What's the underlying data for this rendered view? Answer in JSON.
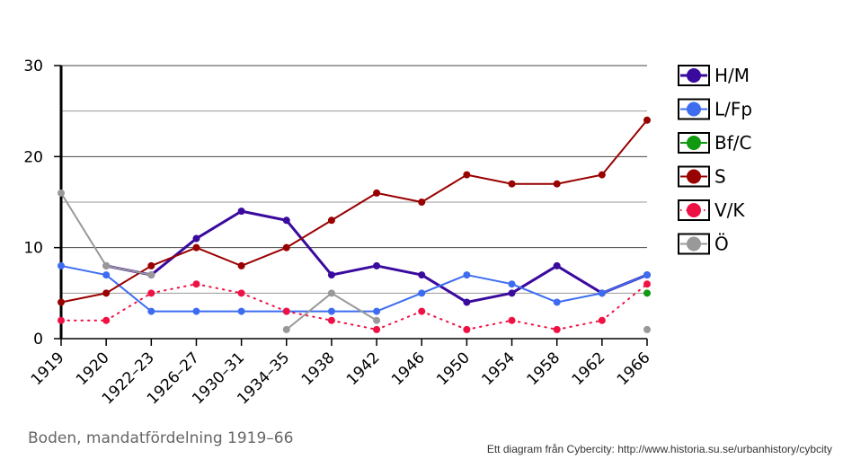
{
  "caption": "Boden, mandatfördelning 1919–66",
  "credit": "Ett diagram från Cybercity: http://www.historia.su.se/urbanhistory/cybcity",
  "chart_data": {
    "type": "line",
    "categories": [
      "1919",
      "1920",
      "1922–23",
      "1926–27",
      "1930–31",
      "1934–35",
      "1938",
      "1942",
      "1946",
      "1950",
      "1954",
      "1958",
      "1962",
      "1966"
    ],
    "ylim": [
      0,
      30
    ],
    "yticks": [
      0,
      10,
      20,
      30
    ],
    "gridlines": [
      5,
      10,
      15,
      20,
      25,
      30
    ],
    "legend_position": "right",
    "series": [
      {
        "name": "H/M",
        "color": "#3a0a9e",
        "style": "solid",
        "width": 3,
        "values": [
          null,
          8,
          7,
          11,
          14,
          13,
          7,
          8,
          7,
          4,
          5,
          8,
          5,
          7
        ]
      },
      {
        "name": "L/Fp",
        "color": "#3d6cf0",
        "style": "solid",
        "width": 2,
        "values": [
          8,
          7,
          3,
          3,
          3,
          3,
          3,
          3,
          5,
          7,
          6,
          4,
          5,
          7
        ]
      },
      {
        "name": "Bf/C",
        "color": "#119a11",
        "style": "solid",
        "width": 2,
        "values": [
          null,
          null,
          null,
          null,
          null,
          null,
          null,
          null,
          null,
          null,
          null,
          null,
          null,
          5
        ]
      },
      {
        "name": "S",
        "color": "#990000",
        "style": "solid",
        "width": 2,
        "values": [
          4,
          5,
          8,
          10,
          8,
          10,
          13,
          16,
          15,
          18,
          17,
          17,
          18,
          24
        ]
      },
      {
        "name": "V/K",
        "color": "#ee1144",
        "style": "dotted",
        "width": 2,
        "values": [
          2,
          2,
          5,
          6,
          5,
          3,
          2,
          1,
          3,
          1,
          2,
          1,
          2,
          6
        ]
      },
      {
        "name": "Ö",
        "color": "#999999",
        "style": "solid",
        "width": 2,
        "values": [
          16,
          8,
          7,
          null,
          null,
          1,
          5,
          2,
          null,
          null,
          null,
          null,
          null,
          1
        ]
      }
    ]
  }
}
